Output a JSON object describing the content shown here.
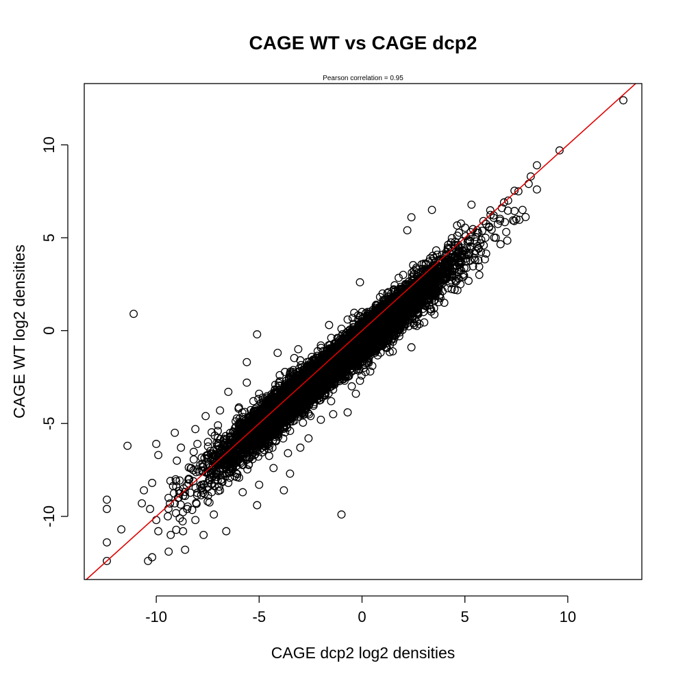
{
  "chart_data": {
    "type": "scatter",
    "title": "CAGE WT vs CAGE dcp2",
    "subtitle": "Pearson correlation =  0.95",
    "xlabel": "CAGE dcp2 log2 densities",
    "ylabel": "CAGE WT log2 densities",
    "xlim": [
      -13.5,
      13.6
    ],
    "ylim": [
      -13.4,
      13.3
    ],
    "xticks": [
      -10,
      -5,
      0,
      5,
      10
    ],
    "yticks": [
      -10,
      -5,
      0,
      5,
      10
    ],
    "xtick_labels": [
      "-10",
      "-5",
      "0",
      "5",
      "10"
    ],
    "ytick_labels": [
      "-10",
      "-5",
      "0",
      "5",
      "10"
    ],
    "grid": false,
    "marker": "open-circle",
    "colors": {
      "points": "#000000",
      "fit_line": "#e00000"
    },
    "fit_line": {
      "intercept": 0.0,
      "slope": 1.0
    },
    "cloud": {
      "description_count": 9000,
      "trend_slope": 0.93,
      "trend_intercept": -0.55,
      "x_range": [
        -9.5,
        9.0
      ]
    },
    "points": [
      [
        12.7,
        12.4
      ],
      [
        9.6,
        9.7
      ],
      [
        8.5,
        8.9
      ],
      [
        8.5,
        7.6
      ],
      [
        8.1,
        7.9
      ],
      [
        7.4,
        5.9
      ],
      [
        7.8,
        6.5
      ],
      [
        6.9,
        6.9
      ],
      [
        3.4,
        6.5
      ],
      [
        2.4,
        6.1
      ],
      [
        2.2,
        5.4
      ],
      [
        4.0,
        1.5
      ],
      [
        3.5,
        1.2
      ],
      [
        5.7,
        3.0
      ],
      [
        4.7,
        2.8
      ],
      [
        1.2,
        -0.9
      ],
      [
        2.4,
        -0.9
      ],
      [
        -0.1,
        2.6
      ],
      [
        -11.1,
        0.9
      ],
      [
        -5.1,
        -0.2
      ],
      [
        -1.0,
        -9.9
      ],
      [
        -11.4,
        -6.2
      ],
      [
        -12.4,
        -9.1
      ],
      [
        -12.4,
        -9.6
      ],
      [
        -12.4,
        -11.4
      ],
      [
        -12.4,
        -12.4
      ],
      [
        -11.7,
        -10.7
      ],
      [
        -10.4,
        -12.4
      ],
      [
        -10.2,
        -12.2
      ],
      [
        -9.4,
        -11.9
      ],
      [
        -8.6,
        -11.8
      ],
      [
        -9.3,
        -11.0
      ],
      [
        -8.7,
        -10.8
      ],
      [
        -9.9,
        -10.8
      ],
      [
        -10.7,
        -9.3
      ],
      [
        -10.3,
        -9.6
      ],
      [
        -10.0,
        -10.2
      ],
      [
        -10.2,
        -8.2
      ],
      [
        -10.6,
        -8.6
      ],
      [
        -9.9,
        -6.7
      ],
      [
        -10.0,
        -6.1
      ],
      [
        -9.1,
        -5.5
      ],
      [
        -7.7,
        -11.0
      ],
      [
        -6.6,
        -10.8
      ],
      [
        -7.2,
        -9.9
      ],
      [
        -8.1,
        -10.2
      ],
      [
        -5.1,
        -9.4
      ],
      [
        -3.8,
        -8.6
      ],
      [
        -3.5,
        -7.7
      ],
      [
        -6.5,
        -3.3
      ],
      [
        -5.6,
        -1.7
      ],
      [
        -4.1,
        -1.2
      ],
      [
        -3.5,
        -2.3
      ],
      [
        -5.6,
        -2.8
      ],
      [
        -6.9,
        -4.3
      ],
      [
        -7.6,
        -4.6
      ],
      [
        -8.1,
        -5.3
      ],
      [
        -8.8,
        -6.3
      ],
      [
        2.9,
        1.9
      ],
      [
        3.3,
        2.5
      ],
      [
        1.8,
        0.6
      ],
      [
        1.1,
        0.1
      ],
      [
        1.6,
        2.1
      ],
      [
        0.9,
        1.3
      ],
      [
        -0.7,
        0.6
      ],
      [
        -1.2,
        -0.4
      ],
      [
        -1.6,
        0.3
      ],
      [
        -3.1,
        -1.0
      ],
      [
        -0.1,
        -2.7
      ],
      [
        0.4,
        -2.2
      ],
      [
        -0.3,
        -3.4
      ],
      [
        -0.7,
        -4.4
      ],
      [
        -1.4,
        -4.5
      ],
      [
        -2.0,
        -4.8
      ],
      [
        -2.6,
        -5.8
      ],
      [
        -3.0,
        -6.3
      ],
      [
        -3.6,
        -6.6
      ],
      [
        -4.3,
        -7.4
      ],
      [
        -5.0,
        -8.3
      ],
      [
        -5.8,
        -8.7
      ],
      [
        -6.9,
        -8.6
      ],
      [
        -7.8,
        -8.3
      ],
      [
        -8.6,
        -8.9
      ],
      [
        -9.1,
        -9.3
      ],
      [
        -8.3,
        -7.4
      ],
      [
        -7.2,
        -6.7
      ],
      [
        -6.3,
        -5.9
      ],
      [
        -5.3,
        -4.6
      ],
      [
        -4.3,
        -3.9
      ],
      [
        -3.3,
        -3.1
      ],
      [
        -2.3,
        -2.2
      ],
      [
        -1.3,
        -1.3
      ],
      [
        -0.3,
        -0.6
      ],
      [
        0.7,
        0.5
      ],
      [
        1.7,
        1.4
      ],
      [
        2.7,
        2.4
      ],
      [
        3.7,
        3.4
      ],
      [
        4.7,
        4.5
      ],
      [
        5.6,
        5.4
      ],
      [
        6.4,
        6.2
      ],
      [
        7.1,
        7.0
      ],
      [
        7.6,
        7.5
      ],
      [
        8.2,
        8.3
      ],
      [
        6.0,
        5.0
      ],
      [
        5.2,
        4.2
      ],
      [
        4.4,
        3.0
      ],
      [
        3.6,
        2.0
      ],
      [
        6.8,
        6.6
      ],
      [
        5.9,
        5.9
      ],
      [
        4.2,
        4.4
      ],
      [
        3.0,
        3.6
      ],
      [
        2.0,
        3.0
      ],
      [
        1.0,
        2.0
      ],
      [
        0.0,
        1.0
      ],
      [
        -1.0,
        0.1
      ],
      [
        -2.0,
        -0.8
      ],
      [
        -3.0,
        -1.6
      ],
      [
        -4.0,
        -2.4
      ],
      [
        -5.0,
        -3.4
      ],
      [
        -6.0,
        -4.2
      ],
      [
        -7.0,
        -5.1
      ],
      [
        -8.0,
        -6.1
      ],
      [
        -9.0,
        -7.0
      ],
      [
        -8.5,
        -9.6
      ],
      [
        -7.5,
        -9.2
      ],
      [
        -6.5,
        -8.2
      ],
      [
        -5.5,
        -7.2
      ],
      [
        -4.5,
        -6.2
      ],
      [
        -3.5,
        -5.4
      ],
      [
        -2.5,
        -4.6
      ],
      [
        -1.5,
        -3.8
      ],
      [
        -0.5,
        -3.0
      ],
      [
        0.5,
        -1.9
      ],
      [
        1.5,
        -0.6
      ],
      [
        2.5,
        0.4
      ],
      [
        3.5,
        1.6
      ],
      [
        4.5,
        2.2
      ],
      [
        5.5,
        3.8
      ],
      [
        6.5,
        5.0
      ],
      [
        7.5,
        6.0
      ]
    ]
  }
}
